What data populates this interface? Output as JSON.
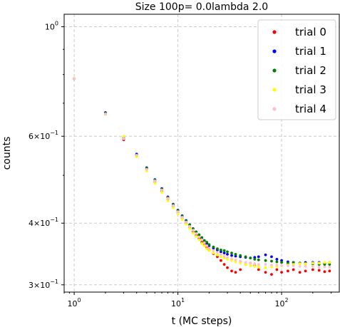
{
  "chart_data": {
    "type": "scatter",
    "title": "Size 100p= 0.0lambda 2.0",
    "xlabel": "t (MC steps)",
    "ylabel": "counts",
    "xscale": "log",
    "yscale": "log",
    "xlim": [
      0.8,
      360
    ],
    "ylim": [
      0.29,
      1.06
    ],
    "grid": true,
    "legend_position": "top-right",
    "xticks": [
      {
        "value": 1,
        "base": "10",
        "exp": "0"
      },
      {
        "value": 10,
        "base": "10",
        "exp": "1"
      },
      {
        "value": 100,
        "base": "10",
        "exp": "2"
      }
    ],
    "yticks": [
      {
        "value": 1.0,
        "base": "10",
        "exp": "0"
      },
      {
        "value": 0.6,
        "base": "6×10",
        "exp": "−1"
      },
      {
        "value": 0.4,
        "base": "4×10",
        "exp": "−1"
      },
      {
        "value": 0.3,
        "base": "3×10",
        "exp": "−1"
      }
    ],
    "series": [
      {
        "name": "trial 0",
        "color": "#ff0000"
      },
      {
        "name": "trial 1",
        "color": "#0000ff"
      },
      {
        "name": "trial 2",
        "color": "#008000"
      },
      {
        "name": "trial 3",
        "color": "#ffff00"
      },
      {
        "name": "trial 4",
        "color": "#ffc0cb"
      }
    ],
    "x": [
      1,
      2,
      3,
      4,
      5,
      6,
      7,
      8,
      9,
      10,
      11,
      12,
      13,
      14,
      15,
      16,
      17,
      18,
      19,
      20,
      22,
      24,
      26,
      28,
      30,
      33,
      36,
      40,
      45,
      50,
      55,
      60,
      70,
      80,
      90,
      100,
      115,
      130,
      150,
      170,
      200,
      230,
      260,
      290
    ],
    "series_values": [
      [
        0.785,
        0.665,
        0.59,
        0.548,
        0.515,
        0.485,
        0.465,
        0.448,
        0.433,
        0.421,
        0.41,
        0.401,
        0.393,
        0.385,
        0.378,
        0.372,
        0.366,
        0.361,
        0.357,
        0.353,
        0.347,
        0.342,
        0.336,
        0.33,
        0.325,
        0.32,
        0.318,
        0.322,
        0.33,
        0.332,
        0.328,
        0.322,
        0.318,
        0.315,
        0.322,
        0.318,
        0.32,
        0.322,
        0.318,
        0.32,
        0.322,
        0.321,
        0.319,
        0.32
      ],
      [
        0.785,
        0.67,
        0.595,
        0.552,
        0.518,
        0.49,
        0.47,
        0.452,
        0.437,
        0.425,
        0.414,
        0.405,
        0.397,
        0.39,
        0.384,
        0.378,
        0.373,
        0.368,
        0.364,
        0.36,
        0.356,
        0.353,
        0.35,
        0.348,
        0.346,
        0.344,
        0.343,
        0.342,
        0.341,
        0.34,
        0.341,
        0.342,
        0.345,
        0.342,
        0.338,
        0.336,
        0.334,
        0.333,
        0.332,
        0.333,
        0.333,
        0.333,
        0.332,
        0.333
      ],
      [
        0.785,
        0.668,
        0.593,
        0.55,
        0.517,
        0.489,
        0.469,
        0.451,
        0.436,
        0.424,
        0.413,
        0.404,
        0.397,
        0.39,
        0.384,
        0.379,
        0.374,
        0.369,
        0.366,
        0.362,
        0.358,
        0.355,
        0.353,
        0.352,
        0.35,
        0.348,
        0.346,
        0.344,
        0.342,
        0.34,
        0.338,
        0.337,
        0.336,
        0.335,
        0.334,
        0.333,
        0.332,
        0.333,
        0.332,
        0.331,
        0.331,
        0.33,
        0.33,
        0.33
      ],
      [
        0.785,
        0.665,
        0.6,
        0.545,
        0.51,
        0.482,
        0.462,
        0.444,
        0.43,
        0.418,
        0.407,
        0.398,
        0.39,
        0.382,
        0.376,
        0.37,
        0.364,
        0.36,
        0.355,
        0.352,
        0.348,
        0.345,
        0.342,
        0.34,
        0.338,
        0.336,
        0.334,
        0.332,
        0.33,
        0.328,
        0.327,
        0.326,
        0.325,
        0.326,
        0.327,
        0.328,
        0.329,
        0.33,
        0.331,
        0.331,
        0.332,
        0.332,
        0.333,
        0.333
      ],
      [
        0.785,
        0.666,
        0.593,
        0.549,
        0.514,
        0.487,
        0.467,
        0.449,
        0.434,
        0.422,
        0.411,
        0.402,
        0.394,
        0.387,
        0.381,
        0.375,
        0.37,
        0.365,
        0.36,
        0.356,
        0.352,
        0.349,
        0.346,
        0.343,
        0.341,
        0.339,
        0.337,
        0.335,
        0.333,
        0.332,
        0.331,
        0.33,
        0.33,
        0.329,
        0.329,
        0.328,
        0.328,
        0.328,
        0.327,
        0.327,
        0.327,
        0.326,
        0.326,
        0.326
      ]
    ]
  }
}
